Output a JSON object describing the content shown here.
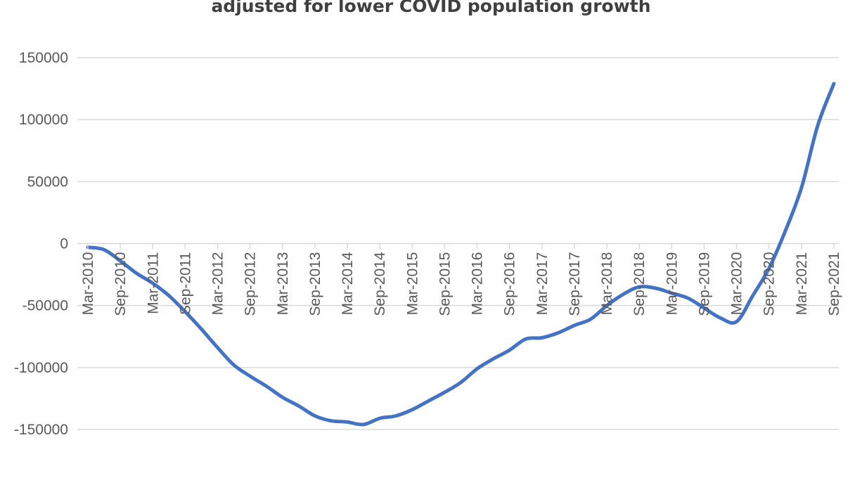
{
  "chart_data": {
    "type": "line",
    "title": "adjusted for lower COVID population growth",
    "xlabel": "",
    "ylabel": "",
    "ylim": [
      -150000,
      150000
    ],
    "yticks": [
      150000,
      100000,
      50000,
      0,
      -50000,
      -100000,
      -150000
    ],
    "grid": true,
    "legend": "none",
    "line_color": "#4472c4",
    "tick_color": "#595959",
    "x_tick_labels": [
      "Mar-2010",
      "Sep-2010",
      "Mar-2011",
      "Sep-2011",
      "Mar-2012",
      "Sep-2012",
      "Mar-2013",
      "Sep-2013",
      "Mar-2014",
      "Sep-2014",
      "Mar-2015",
      "Sep-2015",
      "Mar-2016",
      "Sep-2016",
      "Mar-2017",
      "Sep-2017",
      "Mar-2018",
      "Sep-2018",
      "Mar-2019",
      "Sep-2019",
      "Mar-2020",
      "Sep-2020",
      "Mar-2021",
      "Sep-2021"
    ],
    "series": [
      {
        "x": [
          "Mar-2010",
          "Jun-2010",
          "Sep-2010",
          "Dec-2010",
          "Mar-2011",
          "Jun-2011",
          "Sep-2011",
          "Dec-2011",
          "Mar-2012",
          "Jun-2012",
          "Sep-2012",
          "Dec-2012",
          "Mar-2013",
          "Jun-2013",
          "Sep-2013",
          "Dec-2013",
          "Mar-2014",
          "Jun-2014",
          "Sep-2014",
          "Dec-2014",
          "Mar-2015",
          "Jun-2015",
          "Sep-2015",
          "Dec-2015",
          "Mar-2016",
          "Jun-2016",
          "Sep-2016",
          "Dec-2016",
          "Mar-2017",
          "Jun-2017",
          "Sep-2017",
          "Dec-2017",
          "Mar-2018",
          "Jun-2018",
          "Sep-2018",
          "Dec-2018",
          "Mar-2019",
          "Jun-2019",
          "Sep-2019",
          "Dec-2019",
          "Mar-2020",
          "Jun-2020",
          "Sep-2020",
          "Dec-2020",
          "Mar-2021",
          "Jun-2021",
          "Sep-2021"
        ],
        "values": [
          -3000,
          -5000,
          -14000,
          -24000,
          -32000,
          -42000,
          -55000,
          -69000,
          -84000,
          -98000,
          -107000,
          -115000,
          -124000,
          -131000,
          -139000,
          -143000,
          -144000,
          -146000,
          -141000,
          -139000,
          -134000,
          -127000,
          -120000,
          -112000,
          -101000,
          -93000,
          -86000,
          -77000,
          -76000,
          -72000,
          -66000,
          -61000,
          -50000,
          -41000,
          -35000,
          -36000,
          -40000,
          -44000,
          -52000,
          -60000,
          -63000,
          -42000,
          -20000,
          10000,
          45000,
          95000,
          129000
        ]
      }
    ]
  }
}
